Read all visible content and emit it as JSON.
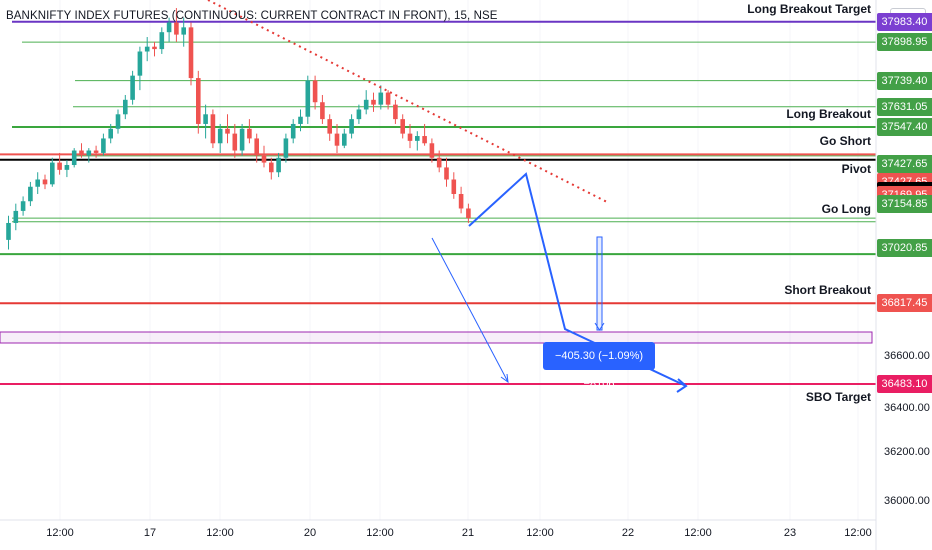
{
  "chart_data": {
    "type": "candlestick",
    "title": "BANKNIFTY INDEX FUTURES (CONTINUOUS: CURRENT CONTRACT IN FRONT), 15, NSE",
    "currency": "INR",
    "price_axis": {
      "min": 35900,
      "max": 38000,
      "ticks": [
        {
          "value": 36600,
          "label": "36600.00"
        },
        {
          "value": 36400,
          "label": "36400.00"
        },
        {
          "value": 36200,
          "label": "36200.00"
        },
        {
          "value": 36000,
          "label": "36000.00"
        }
      ]
    },
    "time_axis": [
      "12:00",
      "17",
      "12:00",
      "20",
      "12:00",
      "21",
      "12:00",
      "22",
      "12:00",
      "23",
      "12:00"
    ],
    "levels": [
      {
        "name": "Long Breakout Target",
        "label": "Long Breakout Target",
        "price": 37983.4,
        "price_label": "37983.40",
        "color": "#6a35c4",
        "badge": "#7b3fd1",
        "width": 2
      },
      {
        "name": "",
        "label": "",
        "price": 37898.95,
        "price_label": "37898.95",
        "color": "#4caf50",
        "badge": "#43a047",
        "width": 1
      },
      {
        "name": "",
        "label": "",
        "price": 37739.4,
        "price_label": "37739.40",
        "color": "#4caf50",
        "badge": "#43a047",
        "width": 1
      },
      {
        "name": "",
        "label": "",
        "price": 37631.05,
        "price_label": "37631.05",
        "color": "#4caf50",
        "badge": "#43a047",
        "width": 1
      },
      {
        "name": "Long Breakout",
        "label": "Long Breakout",
        "price": 37547.4,
        "price_label": "37547.40",
        "color": "#3aa63e",
        "badge": "#43a047",
        "width": 2
      },
      {
        "name": "",
        "label": "",
        "price": 37427.65,
        "price_label": "37427.65",
        "color": "#4caf50",
        "badge": "#43a047",
        "width": 1
      },
      {
        "name": "Go Short",
        "label": "Go Short",
        "price": 37427.65,
        "price_label": "37427.65",
        "color": "#ef5350",
        "badge": "#ef5350",
        "width": 2
      },
      {
        "name": "Pivot",
        "label": "Pivot",
        "price": 37418.2,
        "price_label": "37418.20",
        "color": "#000000",
        "badge": "#000000",
        "width": 2
      },
      {
        "name": "",
        "label": "",
        "price": 37169.95,
        "price_label": "37169.95",
        "color": "#4caf50",
        "badge": "#ef5350",
        "width": 1
      },
      {
        "name": "Go Long",
        "label": "Go Long",
        "price": 37154.85,
        "price_label": "37154.85",
        "color": "#4caf50",
        "badge": "#43a047",
        "width": 1
      },
      {
        "name": "",
        "label": "",
        "price": 37020.85,
        "price_label": "37020.85",
        "color": "#3aa63e",
        "badge": "#43a047",
        "width": 2
      },
      {
        "name": "Short Breakout",
        "label": "Short Breakout",
        "price": 36817.45,
        "price_label": "36817.45",
        "color": "#e53935",
        "badge": "#ef5350",
        "width": 2
      },
      {
        "name": "SBO Target",
        "label": "SBO Target",
        "price": 36483.1,
        "price_label": "36483.10",
        "color": "#e91e63",
        "badge": "#e91e63",
        "width": 2
      }
    ],
    "measure": {
      "label": "−405.30 (−1.09%) −8106"
    },
    "candles": [
      [
        37080,
        37180,
        37040,
        37150
      ],
      [
        37150,
        37230,
        37120,
        37200
      ],
      [
        37200,
        37260,
        37180,
        37240
      ],
      [
        37240,
        37320,
        37220,
        37300
      ],
      [
        37300,
        37360,
        37270,
        37330
      ],
      [
        37330,
        37350,
        37290,
        37310
      ],
      [
        37310,
        37420,
        37300,
        37400
      ],
      [
        37400,
        37440,
        37350,
        37370
      ],
      [
        37370,
        37410,
        37340,
        37390
      ],
      [
        37390,
        37460,
        37380,
        37450
      ],
      [
        37450,
        37480,
        37420,
        37430
      ],
      [
        37430,
        37460,
        37400,
        37450
      ],
      [
        37450,
        37470,
        37420,
        37440
      ],
      [
        37440,
        37520,
        37430,
        37500
      ],
      [
        37500,
        37560,
        37480,
        37540
      ],
      [
        37540,
        37620,
        37520,
        37600
      ],
      [
        37600,
        37680,
        37580,
        37660
      ],
      [
        37660,
        37780,
        37640,
        37760
      ],
      [
        37760,
        37880,
        37700,
        37860
      ],
      [
        37860,
        37920,
        37820,
        37880
      ],
      [
        37880,
        37900,
        37840,
        37870
      ],
      [
        37870,
        37960,
        37850,
        37940
      ],
      [
        37940,
        38000,
        37900,
        37980
      ],
      [
        37980,
        38040,
        37900,
        37930
      ],
      [
        37930,
        38000,
        37880,
        37960
      ],
      [
        37960,
        37980,
        37720,
        37750
      ],
      [
        37750,
        37780,
        37520,
        37560
      ],
      [
        37560,
        37640,
        37500,
        37600
      ],
      [
        37600,
        37620,
        37460,
        37480
      ],
      [
        37480,
        37560,
        37440,
        37540
      ],
      [
        37540,
        37600,
        37480,
        37520
      ],
      [
        37520,
        37560,
        37420,
        37450
      ],
      [
        37450,
        37560,
        37430,
        37540
      ],
      [
        37540,
        37580,
        37480,
        37500
      ],
      [
        37500,
        37520,
        37400,
        37430
      ],
      [
        37430,
        37470,
        37380,
        37400
      ],
      [
        37400,
        37420,
        37330,
        37360
      ],
      [
        37360,
        37440,
        37340,
        37420
      ],
      [
        37420,
        37520,
        37400,
        37500
      ],
      [
        37500,
        37580,
        37480,
        37560
      ],
      [
        37560,
        37620,
        37530,
        37590
      ],
      [
        37590,
        37760,
        37560,
        37740
      ],
      [
        37740,
        37760,
        37620,
        37650
      ],
      [
        37650,
        37680,
        37560,
        37580
      ],
      [
        37580,
        37600,
        37490,
        37520
      ],
      [
        37520,
        37560,
        37440,
        37470
      ],
      [
        37470,
        37540,
        37460,
        37520
      ],
      [
        37520,
        37600,
        37500,
        37580
      ],
      [
        37580,
        37640,
        37560,
        37620
      ],
      [
        37620,
        37700,
        37600,
        37660
      ],
      [
        37660,
        37690,
        37610,
        37640
      ],
      [
        37640,
        37720,
        37620,
        37690
      ],
      [
        37690,
        37700,
        37620,
        37640
      ],
      [
        37640,
        37660,
        37560,
        37580
      ],
      [
        37580,
        37600,
        37500,
        37520
      ],
      [
        37520,
        37560,
        37460,
        37490
      ],
      [
        37490,
        37530,
        37450,
        37510
      ],
      [
        37510,
        37560,
        37470,
        37480
      ],
      [
        37480,
        37500,
        37400,
        37420
      ],
      [
        37420,
        37450,
        37360,
        37380
      ],
      [
        37380,
        37420,
        37300,
        37330
      ],
      [
        37330,
        37360,
        37250,
        37270
      ],
      [
        37270,
        37300,
        37190,
        37210
      ],
      [
        37210,
        37230,
        37150,
        37170
      ]
    ]
  }
}
